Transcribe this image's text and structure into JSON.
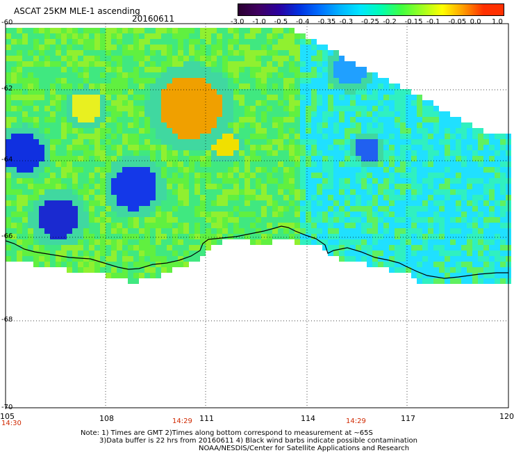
{
  "header": {
    "title": "ASCAT 25KM MLE-1 ascending",
    "date": "20160611"
  },
  "colorbar": {
    "labels": [
      "-3.0",
      "-1.0",
      "-0.5",
      "-0.4",
      "-0.35",
      "-0.3",
      "-0.25",
      "-0.2",
      "-0.15",
      "-0.1",
      "-0.05",
      "0.0",
      "1.0"
    ],
    "colors": [
      "#2a0030",
      "#400060",
      "#2a00a0",
      "#0030e0",
      "#0070ff",
      "#00b4ff",
      "#00e6ff",
      "#00ffb0",
      "#40ff40",
      "#a0ff20",
      "#ffff00",
      "#ffa000",
      "#ff3000"
    ]
  },
  "map": {
    "lat_labels": [
      "-60",
      "-62",
      "-64",
      "-66",
      "-68",
      "-70"
    ],
    "lon_labels": [
      "105",
      "108",
      "111",
      "114",
      "117",
      "120"
    ],
    "time_labels": [
      "14:30",
      "14:29",
      "14:29"
    ],
    "coastline_color": "#000000",
    "grid_color": "#000000"
  },
  "notes": {
    "line1": "Note: 1) Times are GMT 2)Times along bottom correspond to measurement at ~65S",
    "line2": "3)Data buffer is 22 hrs from 20160611 4) Black wind barbs indicate possible contamination",
    "line3": "NOAA/NESDIS/Center for Satellite Applications and Research"
  }
}
